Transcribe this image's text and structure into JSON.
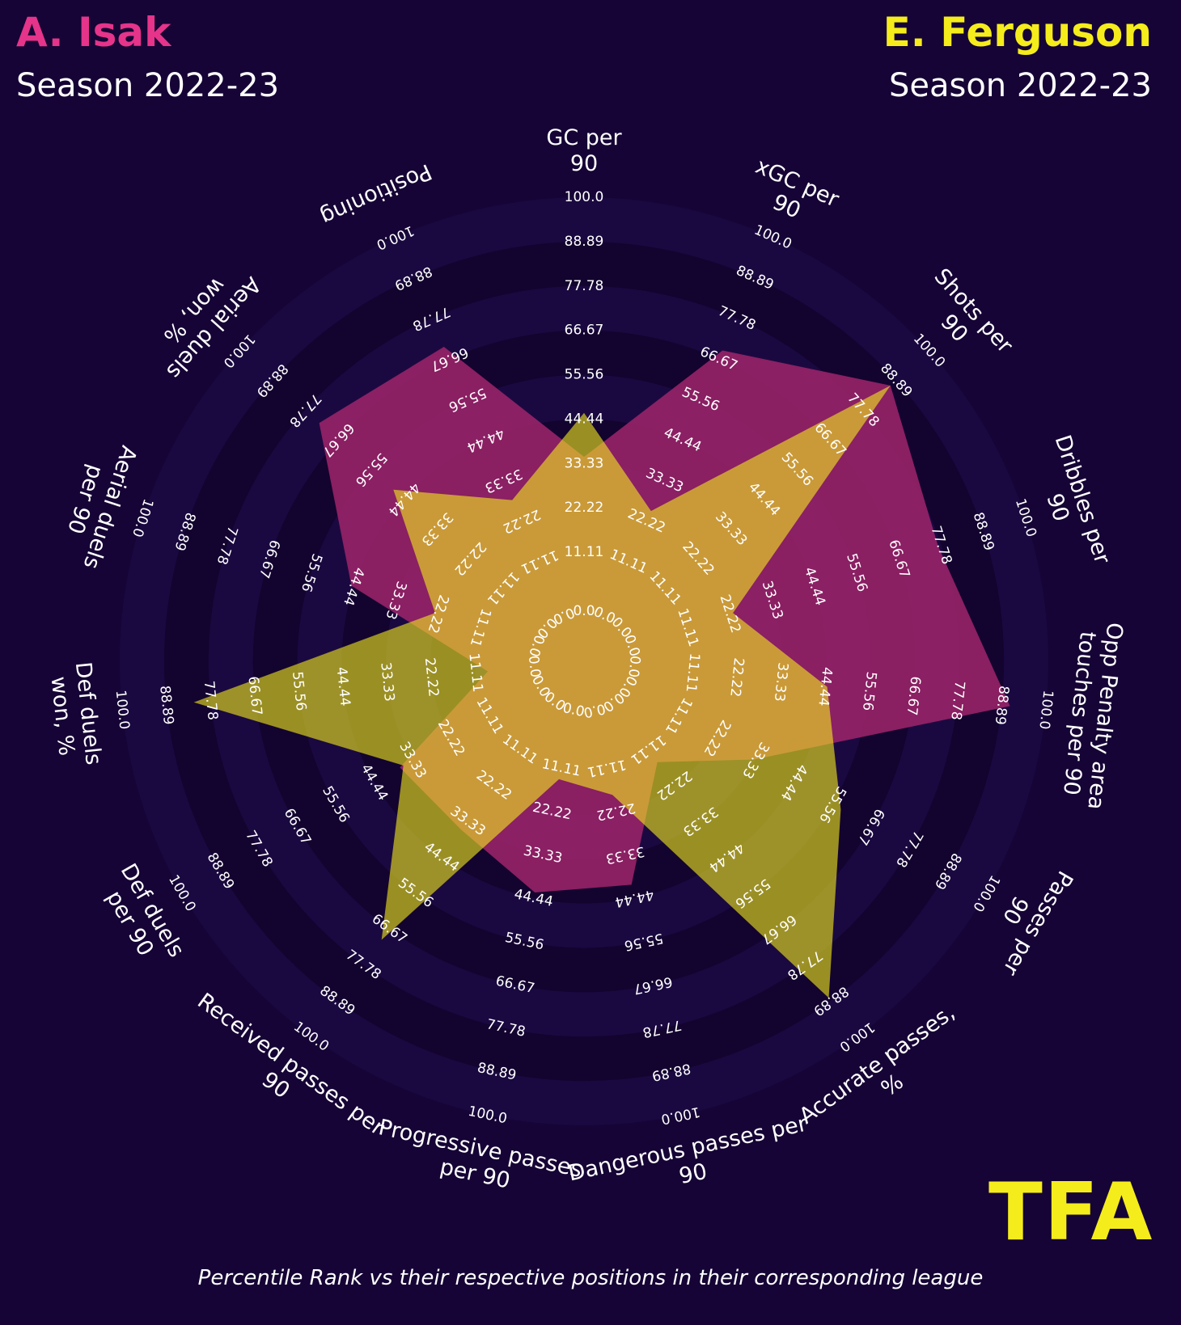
{
  "header": {
    "left": {
      "name": "A. Isak",
      "season": "Season 2022-23",
      "color": "#e5348a"
    },
    "right": {
      "name": "E. Ferguson",
      "season": "Season 2022-23",
      "color": "#f5ec1c"
    }
  },
  "logo": {
    "text": "TFA",
    "color": "#f5ec1c"
  },
  "footnote": "Percentile Rank vs their respective positions in their corresponding league",
  "chart_data": {
    "type": "radar",
    "title": "",
    "rmin": 0,
    "rmax": 100,
    "ring_labels": [
      "0.0",
      "11.11",
      "22.22",
      "33.33",
      "44.44",
      "55.56",
      "66.67",
      "77.78",
      "88.89",
      "100.0"
    ],
    "categories": [
      "GC per 90",
      "xGC per 90",
      "Shots per 90",
      "Dribbles per 90",
      "Opp Penalty area touches per 90",
      "Passes per 90",
      "Accurate passes, %",
      "Dangerous passes per 90",
      "Progressive passes per 90",
      "Received passes per 90",
      "Def duels per 90",
      "Def duels won, %",
      "Aerial duels per 90",
      "Aerial duels won, %",
      "Positioning"
    ],
    "series": [
      {
        "name": "A. Isak",
        "color": "#a0256b",
        "values": [
          35,
          69,
          87,
          77,
          91,
          33,
          15,
          41,
          43,
          36,
          37,
          8,
          45,
          73,
          70
        ]
      },
      {
        "name": "E. Ferguson",
        "color": "#f5ec1c",
        "values": [
          46,
          25,
          87,
          23,
          45,
          58,
          88,
          18,
          14,
          70,
          36,
          82,
          23,
          48,
          28
        ]
      }
    ]
  }
}
